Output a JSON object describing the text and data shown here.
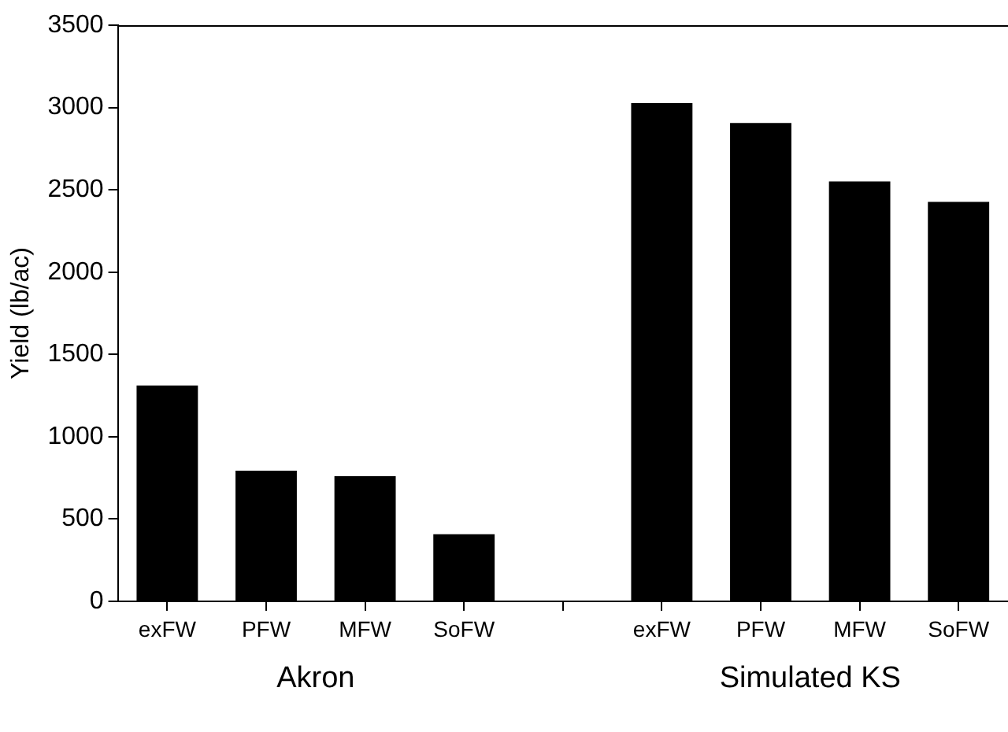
{
  "chart_data": {
    "type": "bar",
    "ylabel": "Yield (lb/ac)",
    "categories": [
      "exFW",
      "PFW",
      "MFW",
      "SoFW",
      null,
      "exFW",
      "PFW",
      "MFW",
      "SoFW"
    ],
    "values": [
      1311,
      794,
      760,
      408,
      null,
      3027,
      2906,
      2551,
      2426
    ],
    "color": "#000000",
    "ylim": [
      0,
      3500
    ],
    "yticks": [
      0,
      500,
      1000,
      1500,
      2000,
      2500,
      3000,
      3500
    ],
    "grid": false,
    "legend": false,
    "annotations": [
      "Akron",
      "Simulated KS"
    ]
  }
}
